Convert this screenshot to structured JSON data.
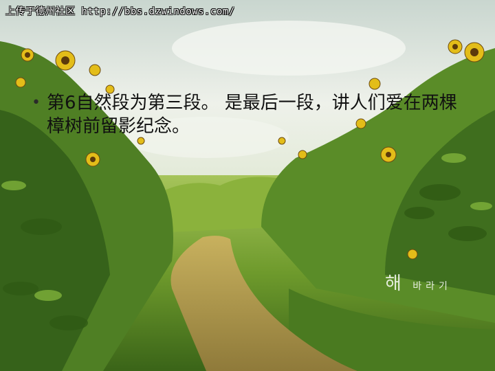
{
  "watermark": "上传于德州社区 http://bbs.dzwindows.com/",
  "bullet": {
    "text": "第6自然段为第三段。 是最后一段，讲人们爱在两棵樟树前留影纪念。"
  },
  "signature": {
    "big": "해",
    "small": "바라기"
  },
  "colors": {
    "sky": "#e6ebe6",
    "foliage": "#3f6d1c",
    "path": "#b59a4a",
    "flower": "#e8c21a"
  }
}
